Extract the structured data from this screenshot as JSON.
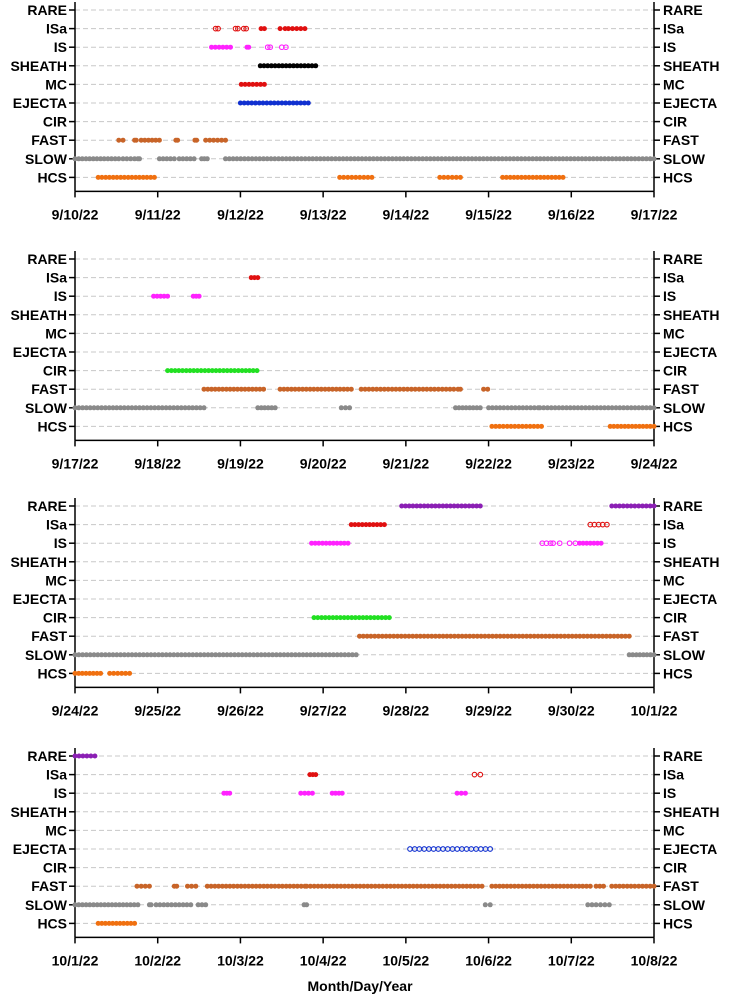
{
  "figure": {
    "xlabel": "Month/Day/Year"
  },
  "categories": [
    "RARE",
    "ISa",
    "IS",
    "SHEATH",
    "MC",
    "EJECTA",
    "CIR",
    "FAST",
    "SLOW",
    "HCS"
  ],
  "colors": {
    "RARE": "#8b1fb4",
    "ISa": "#e01010",
    "IS": "#ff22ff",
    "SHEATH": "#000000",
    "MC": "#e01010",
    "EJECTA": "#1030d0",
    "CIR": "#22e022",
    "FAST": "#c86428",
    "SLOW": "#8a8a8a",
    "HCS": "#f07010",
    "grid": "#c8c8c8"
  },
  "chart_data": [
    {
      "type": "scatter",
      "xlim": [
        "9/10/22",
        "9/17/22"
      ],
      "tick_labels": [
        "9/10/22",
        "9/11/22",
        "9/12/22",
        "9/13/22",
        "9/14/22",
        "9/15/22",
        "9/16/22",
        "9/17/22"
      ],
      "series": [
        {
          "name": "ISa",
          "segments": [
            [
              2.25,
              2.29
            ],
            [
              2.48,
              2.54
            ],
            [
              2.58,
              2.78
            ]
          ],
          "hollow_segments": [
            [
              1.7,
              1.73
            ],
            [
              1.94,
              1.97
            ],
            [
              2.04,
              2.07
            ]
          ]
        },
        {
          "name": "IS",
          "segments": [
            [
              1.65,
              1.88
            ],
            [
              2.08,
              2.1
            ]
          ],
          "hollow_segments": [
            [
              2.33,
              2.36
            ],
            [
              2.5,
              2.55
            ]
          ]
        },
        {
          "name": "SHEATH",
          "segments": [
            [
              2.24,
              2.91
            ]
          ]
        },
        {
          "name": "MC",
          "segments": [
            [
              2.01,
              2.29
            ]
          ]
        },
        {
          "name": "EJECTA",
          "segments": [
            [
              2.0,
              2.82
            ]
          ]
        },
        {
          "name": "FAST",
          "segments": [
            [
              0.53,
              0.58
            ],
            [
              0.72,
              0.74
            ],
            [
              0.8,
              1.02
            ],
            [
              1.22,
              1.24
            ],
            [
              1.45,
              1.47
            ],
            [
              1.58,
              1.82
            ]
          ]
        },
        {
          "name": "SLOW",
          "segments": [
            [
              0.0,
              0.53
            ],
            [
              0.58,
              0.72
            ],
            [
              0.76,
              0.78
            ],
            [
              1.02,
              1.2
            ],
            [
              1.26,
              1.44
            ],
            [
              1.53,
              1.6
            ],
            [
              1.82,
              7.0
            ]
          ]
        },
        {
          "name": "HCS",
          "segments": [
            [
              0.28,
              0.96
            ],
            [
              3.2,
              3.59
            ],
            [
              4.41,
              4.66
            ],
            [
              5.17,
              5.9
            ]
          ]
        }
      ]
    },
    {
      "type": "scatter",
      "xlim": [
        "9/17/22",
        "9/24/22"
      ],
      "tick_labels": [
        "9/17/22",
        "9/18/22",
        "9/19/22",
        "9/20/22",
        "9/21/22",
        "9/22/22",
        "9/23/22",
        "9/24/22"
      ],
      "series": [
        {
          "name": "ISa",
          "segments": [
            [
              2.13,
              2.21
            ]
          ]
        },
        {
          "name": "IS",
          "segments": [
            [
              0.95,
              1.12
            ],
            [
              1.43,
              1.5
            ]
          ]
        },
        {
          "name": "CIR",
          "segments": [
            [
              1.12,
              2.2
            ]
          ]
        },
        {
          "name": "FAST",
          "segments": [
            [
              1.56,
              2.28
            ],
            [
              2.48,
              3.34
            ],
            [
              3.46,
              4.58
            ],
            [
              4.63,
              4.66
            ],
            [
              4.94,
              4.99
            ]
          ]
        },
        {
          "name": "SLOW",
          "segments": [
            [
              0.0,
              1.56
            ],
            [
              2.21,
              2.42
            ],
            [
              3.22,
              3.32
            ],
            [
              4.6,
              4.9
            ],
            [
              5.0,
              5.6
            ],
            [
              5.62,
              7.0
            ]
          ]
        },
        {
          "name": "HCS",
          "segments": [
            [
              5.04,
              5.64
            ],
            [
              6.47,
              7.0
            ]
          ]
        }
      ]
    },
    {
      "type": "scatter",
      "xlim": [
        "9/24/22",
        "10/1/22"
      ],
      "tick_labels": [
        "9/24/22",
        "9/25/22",
        "9/26/22",
        "9/27/22",
        "9/28/22",
        "9/29/22",
        "9/30/22",
        "10/1/22"
      ],
      "series": [
        {
          "name": "RARE",
          "segments": [
            [
              3.95,
              4.9
            ],
            [
              6.49,
              7.0
            ]
          ]
        },
        {
          "name": "ISa",
          "segments": [
            [
              3.34,
              3.74
            ]
          ],
          "hollow_segments": [
            [
              6.23,
              6.43
            ]
          ]
        },
        {
          "name": "IS",
          "segments": [
            [
              2.86,
              3.3
            ],
            [
              6.1,
              6.36
            ]
          ],
          "hollow_segments": [
            [
              5.65,
              5.75
            ],
            [
              5.98,
              6.05
            ],
            [
              5.78,
              5.86
            ]
          ]
        },
        {
          "name": "CIR",
          "segments": [
            [
              2.89,
              3.8
            ]
          ]
        },
        {
          "name": "FAST",
          "segments": [
            [
              3.44,
              6.7
            ]
          ]
        },
        {
          "name": "SLOW",
          "segments": [
            [
              0.0,
              3.4
            ],
            [
              6.7,
              7.0
            ]
          ]
        },
        {
          "name": "HCS",
          "segments": [
            [
              0.0,
              0.31
            ],
            [
              0.42,
              0.66
            ]
          ]
        }
      ]
    },
    {
      "type": "scatter",
      "xlim": [
        "10/1/22",
        "10/8/22"
      ],
      "tick_labels": [
        "10/1/22",
        "10/2/22",
        "10/3/22",
        "10/4/22",
        "10/5/22",
        "10/6/22",
        "10/7/22",
        "10/8/22"
      ],
      "series": [
        {
          "name": "RARE",
          "segments": [
            [
              0.0,
              0.24
            ]
          ]
        },
        {
          "name": "ISa",
          "segments": [
            [
              2.84,
              2.91
            ]
          ],
          "hollow_segments": [
            [
              4.83,
              4.9
            ]
          ]
        },
        {
          "name": "IS",
          "segments": [
            [
              1.8,
              1.87
            ],
            [
              2.73,
              2.87
            ],
            [
              3.11,
              3.23
            ],
            [
              4.62,
              4.72
            ]
          ]
        },
        {
          "name": "EJECTA",
          "hollow_segments": [
            [
              4.05,
              5.02
            ]
          ]
        },
        {
          "name": "FAST",
          "segments": [
            [
              0.75,
              0.9
            ],
            [
              1.2,
              1.23
            ],
            [
              1.36,
              1.46
            ],
            [
              1.6,
              2.78
            ],
            [
              2.8,
              4.92
            ],
            [
              5.04,
              6.23
            ],
            [
              6.3,
              6.39
            ],
            [
              6.49,
              7.0
            ]
          ]
        },
        {
          "name": "SLOW",
          "segments": [
            [
              0.0,
              0.76
            ],
            [
              0.9,
              0.92
            ],
            [
              0.98,
              1.4
            ],
            [
              1.49,
              1.58
            ],
            [
              2.77,
              2.8
            ],
            [
              4.96,
              5.02
            ],
            [
              6.2,
              6.25
            ],
            [
              6.3,
              6.46
            ]
          ]
        },
        {
          "name": "HCS",
          "segments": [
            [
              0.28,
              0.72
            ]
          ]
        }
      ]
    }
  ]
}
